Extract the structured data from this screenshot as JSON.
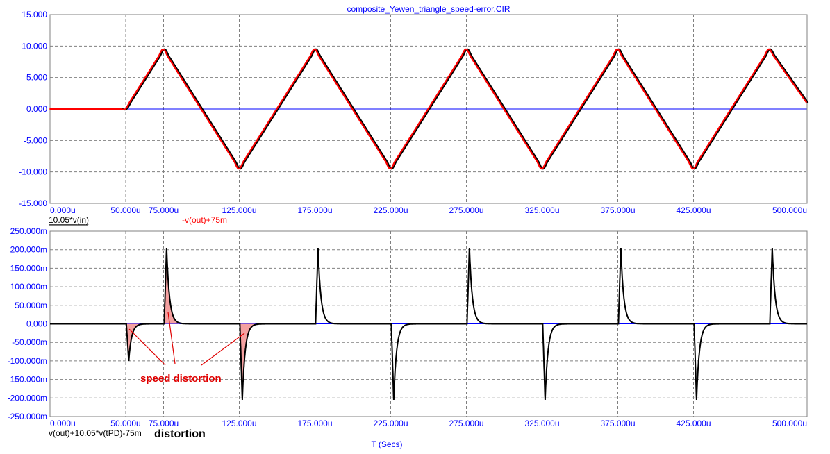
{
  "title": "composite_Yewen_triangle_speed-error.CIR",
  "x_axis_label": "T (Secs)",
  "chart_data": [
    {
      "type": "line",
      "xlim": [
        0,
        500
      ],
      "ylim": [
        -15,
        15
      ],
      "x_ticks": [
        "0.000u",
        "50.000u",
        "75.000u",
        "125.000u",
        "175.000u",
        "225.000u",
        "275.000u",
        "325.000u",
        "375.000u",
        "425.000u",
        "500.000u"
      ],
      "x_tick_values": [
        0,
        50,
        75,
        125,
        175,
        225,
        275,
        325,
        375,
        425,
        500
      ],
      "y_ticks": [
        "15.000",
        "10.000",
        "5.000",
        "0.000",
        "-5.000",
        "-10.000",
        "-15.000"
      ],
      "y_tick_values": [
        15,
        10,
        5,
        0,
        -5,
        -10,
        -15
      ],
      "grid": true,
      "series": [
        {
          "name": "10.05*v(in)",
          "color": "#000000",
          "x": [
            0,
            50,
            75,
            125,
            175,
            225,
            275,
            325,
            375,
            425,
            475,
            500
          ],
          "values": [
            0,
            0,
            9.5,
            -9.5,
            9.5,
            -9.5,
            9.5,
            -9.5,
            9.5,
            -9.5,
            9.5,
            1.0
          ]
        },
        {
          "name": "-v(out)+75m",
          "color": "#ff0000",
          "x": [
            0,
            50,
            75,
            125,
            175,
            225,
            275,
            325,
            375,
            425,
            475,
            500
          ],
          "values": [
            0,
            0,
            9.5,
            -9.5,
            9.5,
            -9.5,
            9.5,
            -9.5,
            9.5,
            -9.5,
            9.5,
            1.0
          ]
        }
      ]
    },
    {
      "type": "line",
      "xlim": [
        0,
        500
      ],
      "ylim": [
        -250,
        250
      ],
      "x_ticks": [
        "0.000u",
        "50.000u",
        "75.000u",
        "125.000u",
        "175.000u",
        "225.000u",
        "275.000u",
        "325.000u",
        "375.000u",
        "425.000u",
        "500.000u"
      ],
      "x_tick_values": [
        0,
        50,
        75,
        125,
        175,
        225,
        275,
        325,
        375,
        425,
        500
      ],
      "y_ticks": [
        "250.000m",
        "200.000m",
        "150.000m",
        "100.000m",
        "50.000m",
        "0.000",
        "-50.000m",
        "-100.000m",
        "-150.000m",
        "-200.000m",
        "-250.000m"
      ],
      "y_tick_values": [
        250,
        200,
        150,
        100,
        50,
        0,
        -50,
        -100,
        -150,
        -200,
        -250
      ],
      "grid": true,
      "series": [
        {
          "name": "v(out)+10.05*v(tPD)-75m",
          "color": "#000000",
          "spikes": [
            {
              "t": 52,
              "peak": -100
            },
            {
              "t": 77,
              "peak": 205
            },
            {
              "t": 127,
              "peak": -205
            },
            {
              "t": 177,
              "peak": 205
            },
            {
              "t": 227,
              "peak": -205
            },
            {
              "t": 277,
              "peak": 205
            },
            {
              "t": 327,
              "peak": -205
            },
            {
              "t": 377,
              "peak": 205
            },
            {
              "t": 427,
              "peak": -205
            },
            {
              "t": 477,
              "peak": 205
            }
          ]
        }
      ],
      "shaded_spikes": [
        0,
        1,
        2
      ],
      "annotation": "speed distortion",
      "bottom_note": "distortion"
    }
  ],
  "colors": {
    "axis_text": "#0000ff",
    "zero_line": "#0000ff",
    "grid": "#808080",
    "frame": "#808080",
    "trace_black": "#000000",
    "trace_red": "#ff0000",
    "shade": "#f4a0a0",
    "annotation": "#e00000"
  }
}
